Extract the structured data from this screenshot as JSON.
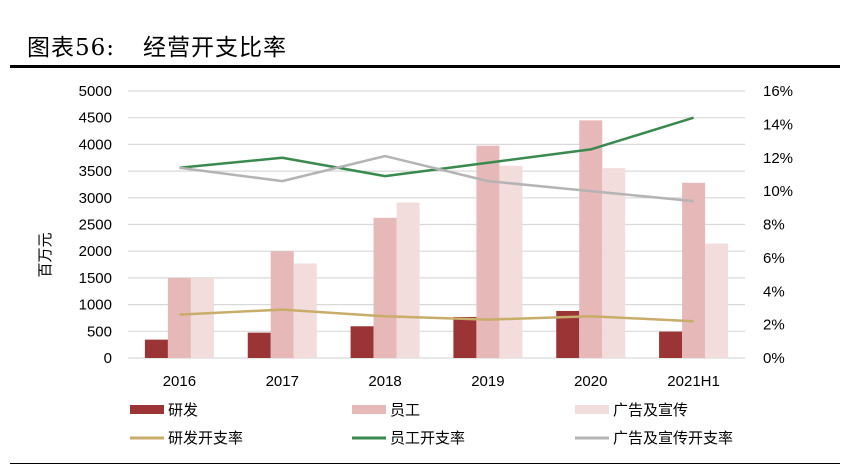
{
  "title": {
    "label": "图表56:",
    "text": "经营开支比率"
  },
  "chart_data": {
    "type": "bar+line",
    "categories": [
      "2016",
      "2017",
      "2018",
      "2019",
      "2020",
      "2021H1"
    ],
    "ylabel": "百万元",
    "ylim": [
      0,
      5000
    ],
    "yticks": [
      "0",
      "500",
      "1000",
      "1500",
      "2000",
      "2500",
      "3000",
      "3500",
      "4000",
      "4500",
      "5000"
    ],
    "y2lim": [
      0,
      16
    ],
    "y2ticks": [
      "0%",
      "2%",
      "4%",
      "6%",
      "8%",
      "10%",
      "12%",
      "14%",
      "16%"
    ],
    "grid": true,
    "legend": "bottom",
    "bar_series": [
      {
        "name": "研发",
        "color": "#9b3434",
        "values": [
          344,
          475,
          594,
          769,
          881,
          494
        ]
      },
      {
        "name": "员工",
        "color": "#e6b8b8",
        "values": [
          1500,
          2000,
          2625,
          3975,
          4450,
          3281
        ]
      },
      {
        "name": "广告及宣传",
        "color": "#f2dcdc",
        "values": [
          1500,
          1769,
          2912,
          3600,
          3556,
          2144
        ]
      }
    ],
    "line_series": [
      {
        "name": "研发开支率",
        "color": "#c8ac6a",
        "values": [
          2.6,
          2.9,
          2.5,
          2.3,
          2.5,
          2.2
        ]
      },
      {
        "name": "员工开支率",
        "color": "#3a8a50",
        "values": [
          11.4,
          12.0,
          10.9,
          11.7,
          12.5,
          14.4
        ]
      },
      {
        "name": "广告及宣传开支率",
        "color": "#b4b4b4",
        "values": [
          11.4,
          10.6,
          12.1,
          10.6,
          10.0,
          9.4
        ]
      }
    ]
  }
}
